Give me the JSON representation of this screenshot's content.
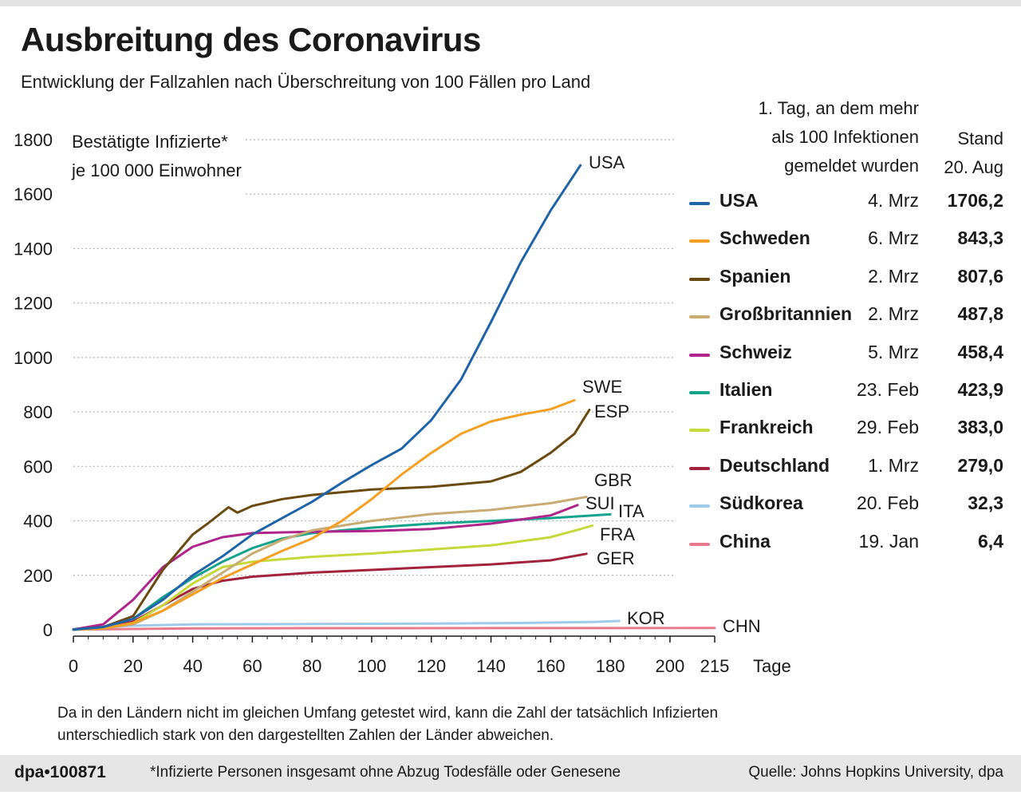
{
  "header": {
    "title": "Ausbreitung des Coronavirus",
    "subtitle": "Entwicklung der Fallzahlen nach Überschreitung von 100 Fällen pro Land"
  },
  "legend_header": {
    "first_day_line1": "1. Tag, an dem mehr",
    "first_day_line2": "als 100 Infektionen",
    "first_day_line3": "gemeldet wurden",
    "stand_line1": "Stand",
    "stand_line2": "20. Aug"
  },
  "legend": [
    {
      "name": "USA",
      "date": "4. Mrz",
      "value": "1706,2",
      "color": "#1f63a8"
    },
    {
      "name": "Schweden",
      "date": "6. Mrz",
      "value": "843,3",
      "color": "#f5a023"
    },
    {
      "name": "Spanien",
      "date": "2. Mrz",
      "value": "807,6",
      "color": "#6b4a12"
    },
    {
      "name": "Großbritannien",
      "date": "2. Mrz",
      "value": "487,8",
      "color": "#c9ac74"
    },
    {
      "name": "Schweiz",
      "date": "5. Mrz",
      "value": "458,4",
      "color": "#b0248c"
    },
    {
      "name": "Italien",
      "date": "23. Feb",
      "value": "423,9",
      "color": "#15a38c"
    },
    {
      "name": "Frankreich",
      "date": "29. Feb",
      "value": "383,0",
      "color": "#c6d83a"
    },
    {
      "name": "Deutschland",
      "date": "1. Mrz",
      "value": "279,0",
      "color": "#a3233c"
    },
    {
      "name": "Südkorea",
      "date": "20. Feb",
      "value": "32,3",
      "color": "#9fcbea"
    },
    {
      "name": "China",
      "date": "19. Jan",
      "value": "6,4",
      "color": "#e8788c"
    }
  ],
  "chart_data": {
    "type": "line",
    "title": "Ausbreitung des Coronavirus",
    "ylabel_line1": "Bestätigte Infizierte*",
    "ylabel_line2": "je 100 000 Einwohner",
    "xlabel": "Tage",
    "xlim": [
      0,
      215
    ],
    "ylim": [
      0,
      1800
    ],
    "xticks": [
      "0",
      "20",
      "40",
      "60",
      "80",
      "100",
      "120",
      "140",
      "160",
      "180",
      "200",
      "215"
    ],
    "yticks": [
      "0",
      "200",
      "400",
      "600",
      "800",
      "1000",
      "1200",
      "1400",
      "1600",
      "1800"
    ],
    "grid": true,
    "series": [
      {
        "name": "CHN",
        "color": "#e8788c",
        "points": [
          [
            0,
            1
          ],
          [
            20,
            3
          ],
          [
            40,
            5
          ],
          [
            80,
            5.8
          ],
          [
            140,
            6.1
          ],
          [
            215,
            6.4
          ]
        ]
      },
      {
        "name": "KOR",
        "color": "#9fcbea",
        "points": [
          [
            0,
            3
          ],
          [
            10,
            10
          ],
          [
            20,
            15
          ],
          [
            40,
            20
          ],
          [
            80,
            21
          ],
          [
            120,
            23
          ],
          [
            150,
            25
          ],
          [
            175,
            29
          ],
          [
            183,
            32.3
          ]
        ]
      },
      {
        "name": "GER",
        "color": "#a3233c",
        "points": [
          [
            0,
            1
          ],
          [
            10,
            8
          ],
          [
            20,
            30
          ],
          [
            30,
            90
          ],
          [
            40,
            150
          ],
          [
            50,
            180
          ],
          [
            60,
            195
          ],
          [
            80,
            210
          ],
          [
            100,
            220
          ],
          [
            120,
            230
          ],
          [
            140,
            240
          ],
          [
            160,
            255
          ],
          [
            172,
            279
          ]
        ]
      },
      {
        "name": "FRA",
        "color": "#c6d83a",
        "points": [
          [
            0,
            1
          ],
          [
            10,
            5
          ],
          [
            20,
            25
          ],
          [
            30,
            90
          ],
          [
            40,
            170
          ],
          [
            50,
            230
          ],
          [
            60,
            250
          ],
          [
            80,
            268
          ],
          [
            100,
            280
          ],
          [
            120,
            295
          ],
          [
            140,
            310
          ],
          [
            160,
            340
          ],
          [
            170,
            370
          ],
          [
            174,
            383
          ]
        ]
      },
      {
        "name": "ITA",
        "color": "#15a38c",
        "points": [
          [
            0,
            1
          ],
          [
            10,
            10
          ],
          [
            20,
            40
          ],
          [
            30,
            120
          ],
          [
            40,
            190
          ],
          [
            50,
            250
          ],
          [
            60,
            300
          ],
          [
            70,
            335
          ],
          [
            80,
            355
          ],
          [
            100,
            375
          ],
          [
            120,
            390
          ],
          [
            140,
            400
          ],
          [
            160,
            410
          ],
          [
            180,
            424
          ]
        ]
      },
      {
        "name": "SUI",
        "color": "#b0248c",
        "points": [
          [
            0,
            1
          ],
          [
            10,
            20
          ],
          [
            20,
            110
          ],
          [
            30,
            230
          ],
          [
            40,
            305
          ],
          [
            50,
            340
          ],
          [
            60,
            355
          ],
          [
            80,
            360
          ],
          [
            100,
            363
          ],
          [
            120,
            370
          ],
          [
            140,
            390
          ],
          [
            160,
            420
          ],
          [
            169,
            458
          ]
        ]
      },
      {
        "name": "GBR",
        "color": "#c9ac74",
        "points": [
          [
            0,
            1
          ],
          [
            10,
            5
          ],
          [
            20,
            20
          ],
          [
            30,
            70
          ],
          [
            40,
            140
          ],
          [
            50,
            210
          ],
          [
            60,
            280
          ],
          [
            70,
            330
          ],
          [
            80,
            365
          ],
          [
            100,
            400
          ],
          [
            120,
            425
          ],
          [
            140,
            440
          ],
          [
            160,
            465
          ],
          [
            172,
            488
          ]
        ]
      },
      {
        "name": "ESP",
        "color": "#6b4a12",
        "points": [
          [
            0,
            1
          ],
          [
            10,
            10
          ],
          [
            20,
            50
          ],
          [
            30,
            220
          ],
          [
            40,
            350
          ],
          [
            45,
            390
          ],
          [
            52,
            450
          ],
          [
            55,
            430
          ],
          [
            60,
            455
          ],
          [
            70,
            480
          ],
          [
            80,
            495
          ],
          [
            100,
            515
          ],
          [
            120,
            525
          ],
          [
            140,
            545
          ],
          [
            150,
            580
          ],
          [
            160,
            650
          ],
          [
            168,
            720
          ],
          [
            173,
            808
          ]
        ]
      },
      {
        "name": "SWE",
        "color": "#f5a023",
        "points": [
          [
            0,
            1
          ],
          [
            10,
            5
          ],
          [
            20,
            25
          ],
          [
            30,
            70
          ],
          [
            40,
            130
          ],
          [
            50,
            190
          ],
          [
            60,
            240
          ],
          [
            70,
            290
          ],
          [
            80,
            335
          ],
          [
            90,
            400
          ],
          [
            100,
            480
          ],
          [
            110,
            570
          ],
          [
            120,
            650
          ],
          [
            130,
            720
          ],
          [
            140,
            765
          ],
          [
            150,
            790
          ],
          [
            160,
            810
          ],
          [
            168,
            843
          ]
        ]
      },
      {
        "name": "USA",
        "color": "#1f63a8",
        "points": [
          [
            0,
            1
          ],
          [
            10,
            10
          ],
          [
            20,
            40
          ],
          [
            30,
            110
          ],
          [
            40,
            200
          ],
          [
            50,
            270
          ],
          [
            60,
            350
          ],
          [
            70,
            410
          ],
          [
            80,
            470
          ],
          [
            90,
            540
          ],
          [
            100,
            605
          ],
          [
            110,
            665
          ],
          [
            120,
            770
          ],
          [
            130,
            920
          ],
          [
            140,
            1130
          ],
          [
            150,
            1350
          ],
          [
            160,
            1540
          ],
          [
            170,
            1706
          ]
        ]
      }
    ]
  },
  "footnote": {
    "line1": "Da in den Ländern nicht im gleichen Umfang getestet wird, kann die Zahl der tatsächlich Infizierten",
    "line2": "unterschiedlich stark von den dargestellten Zahlen der Länder abweichen."
  },
  "footer": {
    "id": "dpa•100871",
    "note": "*Infizierte Personen insgesamt ohne Abzug Todesfälle oder Genesene",
    "source": "Quelle: Johns Hopkins University, dpa"
  }
}
